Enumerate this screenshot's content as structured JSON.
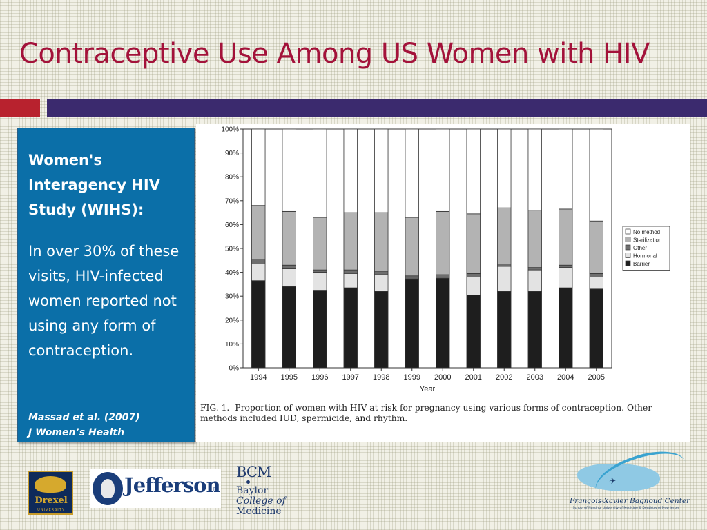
{
  "slide": {
    "title": "Contraceptive Use Among US Women with HIV"
  },
  "sidebar": {
    "heading": "Women's Interagency HIV Study (WIHS):",
    "body": "In over 30% of these visits, HIV-infected women reported not using any form of contraception.",
    "citation_line1": "Massad et al. (2007)",
    "citation_line2": "J Women’s Health"
  },
  "figure": {
    "caption_label": "FIG. 1.",
    "caption_text": "Proportion of women with HIV at risk for pregnancy using various forms of contraception. Other methods included IUD, spermicide, and rhythm."
  },
  "chart_data": {
    "type": "bar",
    "stacked": true,
    "title": "",
    "xlabel": "Year",
    "ylabel": "",
    "ylim": [
      0,
      100
    ],
    "y_ticks": [
      "0%",
      "10%",
      "20%",
      "30%",
      "40%",
      "50%",
      "60%",
      "70%",
      "80%",
      "90%",
      "100%"
    ],
    "categories": [
      "1994",
      "1995",
      "1996",
      "1997",
      "1998",
      "1999",
      "2000",
      "2001",
      "2002",
      "2003",
      "2004",
      "2005"
    ],
    "series": [
      {
        "name": "Barrier",
        "color": "#1e1e1e",
        "values": [
          36.5,
          34,
          32.5,
          33.5,
          32,
          37,
          37.5,
          30.5,
          32,
          32,
          33.5,
          33
        ]
      },
      {
        "name": "Hormonal",
        "color": "#e3e3e3",
        "values": [
          7,
          7.5,
          7.5,
          6,
          7,
          0.5,
          0,
          7.5,
          10.5,
          9,
          8.5,
          5
        ]
      },
      {
        "name": "Other",
        "color": "#6e6e6e",
        "values": [
          2,
          1.5,
          1,
          1.5,
          1.5,
          1,
          1.5,
          1.5,
          1,
          1,
          1,
          1.5
        ]
      },
      {
        "name": "Sterilization",
        "color": "#b3b3b3",
        "values": [
          22.5,
          22.5,
          22,
          24,
          24.5,
          24.5,
          26.5,
          25,
          23.5,
          24,
          23.5,
          22
        ]
      },
      {
        "name": "No method",
        "color": "#ffffff",
        "values": [
          32,
          34.5,
          37,
          35,
          35,
          37,
          34.5,
          35.5,
          33,
          34,
          33.5,
          38.5
        ]
      }
    ],
    "legend_order": [
      "No method",
      "Sterilization",
      "Other",
      "Hormonal",
      "Barrier"
    ],
    "legend_position": "right",
    "grid": false
  },
  "logos": {
    "drexel": {
      "word": "Drexel",
      "sub": "UNIVERSITY"
    },
    "jefferson": {
      "word": "Jefferson",
      "tm": "TM"
    },
    "bcm": {
      "abbr": "BCM",
      "line1": "Baylor",
      "line2": "College of",
      "line3": "Medicine"
    },
    "fxb": {
      "name": "François-Xavier Bagnoud Center",
      "school": "School of Nursing, University of Medicine & Dentistry of New Jersey"
    }
  }
}
